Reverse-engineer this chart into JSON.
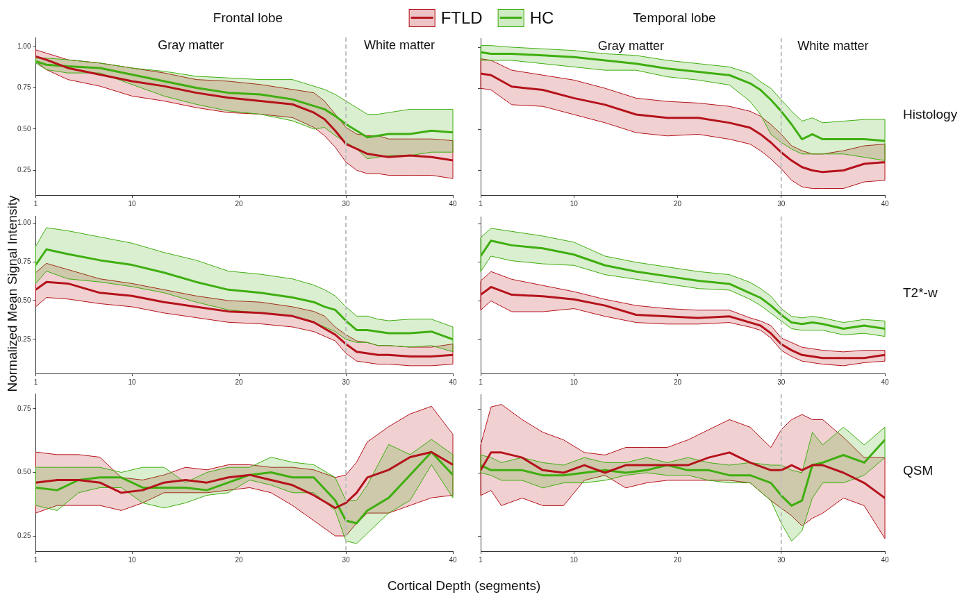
{
  "chart_data": [
    {
      "type": "line",
      "title": "Frontal lobe",
      "legend": "top",
      "marker": "none",
      "line_style": "solid",
      "xlim": [
        1,
        40
      ],
      "xticks": [
        1,
        10,
        20,
        30,
        40
      ],
      "ylim": [
        0.1,
        1.055
      ],
      "yticks": [
        {
          "value": 0.25,
          "label": "0.25"
        },
        {
          "value": 0.5,
          "label": "0.50"
        },
        {
          "value": 0.75,
          "label": "0.75"
        },
        {
          "value": 1,
          "label": "1.00"
        }
      ],
      "x": [
        1,
        2,
        4,
        7,
        10,
        13,
        16,
        19,
        22,
        25,
        27,
        28,
        29,
        30,
        31,
        32,
        33,
        34,
        36,
        38,
        40
      ],
      "ref_lines": [
        {
          "axis": "x",
          "value": 30,
          "color": "#c0c0c0",
          "line_style": "dashed"
        }
      ],
      "annotations": [
        "Gray matter",
        "White matter"
      ],
      "series": [
        {
          "name": "FTLD",
          "color": "#b5121b",
          "values": [
            0.94,
            0.92,
            0.87,
            0.83,
            0.79,
            0.76,
            0.72,
            0.69,
            0.67,
            0.65,
            0.6,
            0.56,
            0.49,
            0.41,
            0.38,
            0.35,
            0.34,
            0.33,
            0.34,
            0.33,
            0.31
          ],
          "upper": [
            0.98,
            0.96,
            0.92,
            0.9,
            0.87,
            0.84,
            0.8,
            0.79,
            0.77,
            0.74,
            0.72,
            0.67,
            0.59,
            0.51,
            0.47,
            0.46,
            0.46,
            0.44,
            0.44,
            0.44,
            0.43
          ],
          "lower": [
            0.91,
            0.86,
            0.8,
            0.76,
            0.7,
            0.67,
            0.63,
            0.6,
            0.59,
            0.57,
            0.51,
            0.46,
            0.39,
            0.3,
            0.25,
            0.23,
            0.23,
            0.22,
            0.22,
            0.22,
            0.2
          ]
        },
        {
          "name": "HC",
          "color": "#3fae10",
          "values": [
            0.91,
            0.89,
            0.88,
            0.87,
            0.83,
            0.79,
            0.75,
            0.72,
            0.71,
            0.68,
            0.64,
            0.62,
            0.58,
            0.53,
            0.49,
            0.45,
            0.46,
            0.47,
            0.47,
            0.49,
            0.48
          ],
          "upper": [
            0.93,
            0.93,
            0.92,
            0.9,
            0.87,
            0.85,
            0.82,
            0.81,
            0.8,
            0.8,
            0.76,
            0.74,
            0.71,
            0.67,
            0.63,
            0.59,
            0.59,
            0.6,
            0.62,
            0.62,
            0.62
          ],
          "lower": [
            0.9,
            0.86,
            0.84,
            0.84,
            0.77,
            0.7,
            0.65,
            0.61,
            0.59,
            0.55,
            0.5,
            0.51,
            0.46,
            0.42,
            0.38,
            0.32,
            0.33,
            0.34,
            0.34,
            0.36,
            0.36
          ]
        }
      ]
    },
    {
      "type": "line",
      "title": "Temporal lobe",
      "y2label": "Histology",
      "tick_labels": "x",
      "marker": "none",
      "line_style": "solid",
      "xlim": [
        1,
        40
      ],
      "xticks": [
        1,
        10,
        20,
        30,
        40
      ],
      "ylim": [
        0.1,
        1.055
      ],
      "yticks": [
        {
          "value": 0.25,
          "label": null
        },
        {
          "value": 0.5,
          "label": null
        },
        {
          "value": 0.75,
          "label": null
        },
        {
          "value": 1,
          "label": null
        }
      ],
      "x": [
        1,
        2,
        4,
        7,
        10,
        13,
        16,
        19,
        22,
        25,
        27,
        28,
        29,
        30,
        31,
        32,
        33,
        34,
        36,
        38,
        40
      ],
      "ref_lines": [
        {
          "axis": "x",
          "value": 30,
          "color": "#c0c0c0",
          "line_style": "dashed"
        }
      ],
      "annotations": [
        "Gray matter",
        "White matter"
      ],
      "series": [
        {
          "name": "FTLD",
          "color": "#b5121b",
          "values": [
            0.84,
            0.83,
            0.76,
            0.74,
            0.69,
            0.65,
            0.59,
            0.57,
            0.57,
            0.54,
            0.51,
            0.47,
            0.42,
            0.36,
            0.31,
            0.27,
            0.25,
            0.24,
            0.25,
            0.29,
            0.3
          ],
          "upper": [
            0.93,
            0.92,
            0.86,
            0.83,
            0.8,
            0.75,
            0.69,
            0.67,
            0.66,
            0.64,
            0.61,
            0.58,
            0.53,
            0.47,
            0.4,
            0.37,
            0.35,
            0.35,
            0.37,
            0.4,
            0.41
          ],
          "lower": [
            0.75,
            0.74,
            0.65,
            0.64,
            0.59,
            0.54,
            0.48,
            0.46,
            0.47,
            0.44,
            0.41,
            0.37,
            0.32,
            0.26,
            0.19,
            0.15,
            0.14,
            0.14,
            0.14,
            0.18,
            0.19
          ]
        },
        {
          "name": "HC",
          "color": "#3fae10",
          "values": [
            0.97,
            0.96,
            0.96,
            0.95,
            0.94,
            0.92,
            0.9,
            0.87,
            0.85,
            0.83,
            0.78,
            0.74,
            0.68,
            0.61,
            0.53,
            0.44,
            0.47,
            0.44,
            0.44,
            0.44,
            0.43
          ],
          "upper": [
            1.01,
            1.01,
            1.0,
            0.99,
            0.98,
            0.96,
            0.95,
            0.92,
            0.9,
            0.88,
            0.84,
            0.79,
            0.75,
            0.68,
            0.61,
            0.55,
            0.57,
            0.54,
            0.55,
            0.56,
            0.56
          ],
          "lower": [
            0.92,
            0.92,
            0.92,
            0.9,
            0.88,
            0.86,
            0.86,
            0.82,
            0.8,
            0.77,
            0.67,
            0.59,
            0.47,
            0.42,
            0.38,
            0.35,
            0.35,
            0.35,
            0.35,
            0.33,
            0.31
          ]
        }
      ]
    },
    {
      "type": "line",
      "ylabel": "Normalized Mean Signal Intensity",
      "marker": "none",
      "line_style": "solid",
      "xlim": [
        1,
        40
      ],
      "xticks": [
        1,
        10,
        20,
        30,
        40
      ],
      "ylim": [
        0.03,
        1.046
      ],
      "yticks": [
        {
          "value": 0.25,
          "label": "0.25"
        },
        {
          "value": 0.5,
          "label": "0.50"
        },
        {
          "value": 0.75,
          "label": "0.75"
        },
        {
          "value": 1,
          "label": "1.00"
        }
      ],
      "x": [
        1,
        2,
        4,
        7,
        10,
        13,
        16,
        19,
        22,
        25,
        27,
        28,
        29,
        30,
        31,
        32,
        33,
        34,
        36,
        38,
        40
      ],
      "ref_lines": [
        {
          "axis": "x",
          "value": 30,
          "color": "#c0c0c0",
          "line_style": "dashed"
        }
      ],
      "series": [
        {
          "name": "FTLD",
          "color": "#b5121b",
          "values": [
            0.57,
            0.62,
            0.61,
            0.55,
            0.53,
            0.49,
            0.46,
            0.43,
            0.42,
            0.4,
            0.36,
            0.32,
            0.28,
            0.22,
            0.17,
            0.16,
            0.15,
            0.15,
            0.14,
            0.14,
            0.15
          ],
          "upper": [
            0.68,
            0.74,
            0.7,
            0.64,
            0.61,
            0.57,
            0.53,
            0.5,
            0.49,
            0.46,
            0.43,
            0.4,
            0.33,
            0.28,
            0.24,
            0.23,
            0.21,
            0.21,
            0.2,
            0.2,
            0.22
          ],
          "lower": [
            0.46,
            0.52,
            0.51,
            0.48,
            0.46,
            0.42,
            0.39,
            0.36,
            0.35,
            0.33,
            0.3,
            0.27,
            0.24,
            0.16,
            0.11,
            0.1,
            0.09,
            0.09,
            0.08,
            0.08,
            0.09
          ]
        },
        {
          "name": "HC",
          "color": "#3fae10",
          "values": [
            0.73,
            0.83,
            0.8,
            0.76,
            0.73,
            0.68,
            0.62,
            0.57,
            0.55,
            0.52,
            0.49,
            0.46,
            0.44,
            0.37,
            0.31,
            0.31,
            0.3,
            0.29,
            0.29,
            0.3,
            0.25
          ],
          "upper": [
            0.85,
            0.97,
            0.95,
            0.91,
            0.87,
            0.81,
            0.76,
            0.69,
            0.67,
            0.64,
            0.6,
            0.57,
            0.53,
            0.46,
            0.4,
            0.4,
            0.38,
            0.37,
            0.38,
            0.38,
            0.33
          ],
          "lower": [
            0.61,
            0.69,
            0.64,
            0.62,
            0.59,
            0.55,
            0.49,
            0.44,
            0.42,
            0.4,
            0.36,
            0.33,
            0.3,
            0.25,
            0.23,
            0.23,
            0.21,
            0.21,
            0.2,
            0.21,
            0.17
          ]
        }
      ]
    },
    {
      "type": "line",
      "y2label": "T2*-w",
      "tick_labels": "x",
      "marker": "none",
      "line_style": "solid",
      "xlim": [
        1,
        40
      ],
      "xticks": [
        1,
        10,
        20,
        30,
        40
      ],
      "ylim": [
        0.03,
        1.046
      ],
      "yticks": [
        {
          "value": 0.25,
          "label": null
        },
        {
          "value": 0.5,
          "label": null
        },
        {
          "value": 0.75,
          "label": null
        },
        {
          "value": 1,
          "label": null
        }
      ],
      "x": [
        1,
        2,
        4,
        7,
        10,
        13,
        16,
        19,
        22,
        25,
        27,
        28,
        29,
        30,
        31,
        32,
        33,
        34,
        36,
        38,
        40
      ],
      "ref_lines": [
        {
          "axis": "x",
          "value": 30,
          "color": "#c0c0c0",
          "line_style": "dashed"
        }
      ],
      "series": [
        {
          "name": "FTLD",
          "color": "#b5121b",
          "values": [
            0.54,
            0.59,
            0.54,
            0.53,
            0.51,
            0.47,
            0.41,
            0.4,
            0.39,
            0.4,
            0.36,
            0.34,
            0.29,
            0.22,
            0.18,
            0.15,
            0.14,
            0.13,
            0.13,
            0.13,
            0.15
          ],
          "upper": [
            0.63,
            0.69,
            0.64,
            0.6,
            0.56,
            0.51,
            0.47,
            0.45,
            0.44,
            0.44,
            0.39,
            0.37,
            0.34,
            0.26,
            0.23,
            0.2,
            0.19,
            0.18,
            0.17,
            0.18,
            0.18
          ],
          "lower": [
            0.44,
            0.5,
            0.43,
            0.43,
            0.45,
            0.4,
            0.36,
            0.35,
            0.35,
            0.36,
            0.33,
            0.31,
            0.26,
            0.18,
            0.14,
            0.11,
            0.1,
            0.09,
            0.08,
            0.1,
            0.11
          ]
        },
        {
          "name": "HC",
          "color": "#3fae10",
          "values": [
            0.79,
            0.89,
            0.86,
            0.84,
            0.8,
            0.73,
            0.69,
            0.66,
            0.63,
            0.61,
            0.55,
            0.52,
            0.47,
            0.41,
            0.36,
            0.35,
            0.36,
            0.35,
            0.32,
            0.34,
            0.32
          ],
          "upper": [
            0.91,
            0.97,
            0.95,
            0.92,
            0.88,
            0.79,
            0.75,
            0.72,
            0.69,
            0.67,
            0.62,
            0.58,
            0.53,
            0.45,
            0.4,
            0.39,
            0.4,
            0.39,
            0.36,
            0.38,
            0.37
          ],
          "lower": [
            0.69,
            0.79,
            0.76,
            0.74,
            0.73,
            0.67,
            0.64,
            0.61,
            0.58,
            0.57,
            0.51,
            0.47,
            0.42,
            0.37,
            0.32,
            0.31,
            0.31,
            0.31,
            0.28,
            0.29,
            0.27
          ]
        }
      ]
    },
    {
      "type": "line",
      "xlabel": "Cortical Depth (segments)",
      "marker": "none",
      "line_style": "solid",
      "xlim": [
        1,
        40
      ],
      "xticks": [
        1,
        10,
        20,
        30,
        40
      ],
      "ylim": [
        0.19,
        0.81
      ],
      "yticks": [
        {
          "value": 0.25,
          "label": "0.25"
        },
        {
          "value": 0.5,
          "label": "0.50"
        },
        {
          "value": 0.75,
          "label": "0.75"
        }
      ],
      "x": [
        1,
        3,
        5,
        7,
        9,
        11,
        13,
        15,
        17,
        19,
        21,
        23,
        25,
        27,
        29,
        30,
        31,
        32,
        34,
        36,
        38,
        40
      ],
      "ref_lines": [
        {
          "axis": "x",
          "value": 30,
          "color": "#c0c0c0",
          "line_style": "dashed"
        }
      ],
      "series": [
        {
          "name": "FTLD",
          "color": "#b5121b",
          "values": [
            0.46,
            0.47,
            0.47,
            0.46,
            0.42,
            0.43,
            0.46,
            0.47,
            0.46,
            0.48,
            0.49,
            0.47,
            0.45,
            0.41,
            0.36,
            0.38,
            0.42,
            0.48,
            0.51,
            0.56,
            0.58,
            0.53
          ],
          "upper": [
            0.58,
            0.57,
            0.57,
            0.56,
            0.48,
            0.47,
            0.49,
            0.52,
            0.51,
            0.53,
            0.53,
            0.52,
            0.52,
            0.51,
            0.48,
            0.49,
            0.54,
            0.62,
            0.68,
            0.73,
            0.76,
            0.65
          ],
          "lower": [
            0.34,
            0.37,
            0.37,
            0.37,
            0.35,
            0.38,
            0.42,
            0.42,
            0.42,
            0.43,
            0.44,
            0.42,
            0.37,
            0.31,
            0.25,
            0.25,
            0.3,
            0.34,
            0.34,
            0.37,
            0.4,
            0.41
          ]
        },
        {
          "name": "HC",
          "color": "#3fae10",
          "values": [
            0.44,
            0.43,
            0.47,
            0.48,
            0.48,
            0.44,
            0.44,
            0.44,
            0.43,
            0.46,
            0.49,
            0.5,
            0.48,
            0.48,
            0.39,
            0.31,
            0.3,
            0.35,
            0.4,
            0.49,
            0.58,
            0.49
          ],
          "upper": [
            0.52,
            0.52,
            0.52,
            0.52,
            0.5,
            0.52,
            0.52,
            0.46,
            0.5,
            0.52,
            0.52,
            0.56,
            0.54,
            0.53,
            0.48,
            0.39,
            0.39,
            0.45,
            0.61,
            0.57,
            0.63,
            0.57
          ],
          "lower": [
            0.37,
            0.35,
            0.42,
            0.44,
            0.44,
            0.38,
            0.36,
            0.38,
            0.41,
            0.42,
            0.47,
            0.45,
            0.42,
            0.42,
            0.35,
            0.23,
            0.22,
            0.26,
            0.34,
            0.39,
            0.53,
            0.4
          ]
        }
      ]
    },
    {
      "type": "line",
      "y2label": "QSM",
      "tick_labels": "x",
      "marker": "none",
      "line_style": "solid",
      "xlim": [
        1,
        40
      ],
      "xticks": [
        1,
        10,
        20,
        30,
        40
      ],
      "ylim": [
        0.19,
        0.81
      ],
      "yticks": [
        {
          "value": 0.25,
          "label": null
        },
        {
          "value": 0.5,
          "label": null
        },
        {
          "value": 0.75,
          "label": null
        }
      ],
      "x": [
        1,
        2,
        3,
        5,
        7,
        9,
        11,
        13,
        15,
        17,
        19,
        21,
        23,
        25,
        27,
        29,
        30,
        31,
        32,
        33,
        34,
        36,
        38,
        40
      ],
      "ref_lines": [
        {
          "axis": "x",
          "value": 30,
          "color": "#c0c0c0",
          "line_style": "dashed"
        }
      ],
      "series": [
        {
          "name": "FTLD",
          "color": "#b5121b",
          "values": [
            0.51,
            0.58,
            0.58,
            0.56,
            0.51,
            0.5,
            0.53,
            0.5,
            0.53,
            0.53,
            0.53,
            0.53,
            0.56,
            0.58,
            0.54,
            0.51,
            0.51,
            0.53,
            0.51,
            0.53,
            0.53,
            0.5,
            0.46,
            0.4
          ],
          "upper": [
            0.61,
            0.76,
            0.77,
            0.71,
            0.66,
            0.63,
            0.58,
            0.57,
            0.6,
            0.6,
            0.6,
            0.63,
            0.67,
            0.71,
            0.68,
            0.6,
            0.67,
            0.71,
            0.73,
            0.71,
            0.71,
            0.64,
            0.56,
            0.56
          ],
          "lower": [
            0.41,
            0.43,
            0.37,
            0.4,
            0.37,
            0.37,
            0.47,
            0.49,
            0.44,
            0.46,
            0.47,
            0.47,
            0.47,
            0.47,
            0.46,
            0.39,
            0.36,
            0.33,
            0.29,
            0.32,
            0.34,
            0.4,
            0.37,
            0.24
          ]
        },
        {
          "name": "HC",
          "color": "#3fae10",
          "values": [
            0.53,
            0.51,
            0.51,
            0.51,
            0.49,
            0.49,
            0.5,
            0.51,
            0.5,
            0.51,
            0.53,
            0.51,
            0.51,
            0.49,
            0.49,
            0.46,
            0.41,
            0.37,
            0.39,
            0.53,
            0.54,
            0.57,
            0.54,
            0.63
          ],
          "upper": [
            0.57,
            0.56,
            0.54,
            0.56,
            0.54,
            0.53,
            0.56,
            0.54,
            0.54,
            0.56,
            0.54,
            0.56,
            0.54,
            0.53,
            0.54,
            0.53,
            0.53,
            0.51,
            0.5,
            0.66,
            0.61,
            0.68,
            0.61,
            0.68
          ],
          "lower": [
            0.5,
            0.49,
            0.47,
            0.47,
            0.44,
            0.46,
            0.46,
            0.47,
            0.49,
            0.5,
            0.49,
            0.49,
            0.47,
            0.46,
            0.46,
            0.39,
            0.3,
            0.23,
            0.27,
            0.4,
            0.46,
            0.46,
            0.49,
            0.56
          ]
        }
      ]
    }
  ]
}
